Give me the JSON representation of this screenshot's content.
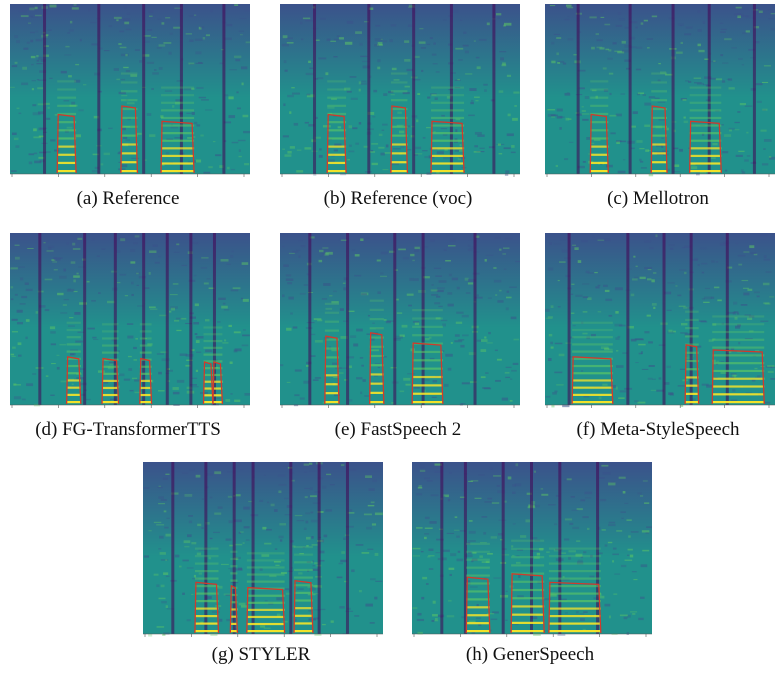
{
  "figure": {
    "colormap": [
      "#440154",
      "#3b528b",
      "#21918c",
      "#5ec962",
      "#fde725"
    ],
    "contour_color": "#d03a2c",
    "panels": [
      {
        "id": "a",
        "caption": "(a)  Reference"
      },
      {
        "id": "b",
        "caption": "(b)  Reference (voc)"
      },
      {
        "id": "c",
        "caption": "(c)  Mellotron"
      },
      {
        "id": "d",
        "caption": "(d)  FG-TransformerTTS"
      },
      {
        "id": "e",
        "caption": "(e)  FastSpeech 2"
      },
      {
        "id": "f",
        "caption": "(f)  Meta-StyleSpeech"
      },
      {
        "id": "g",
        "caption": "(g)  STYLER"
      },
      {
        "id": "h",
        "caption": "(h)  GenerSpeech"
      }
    ]
  }
}
